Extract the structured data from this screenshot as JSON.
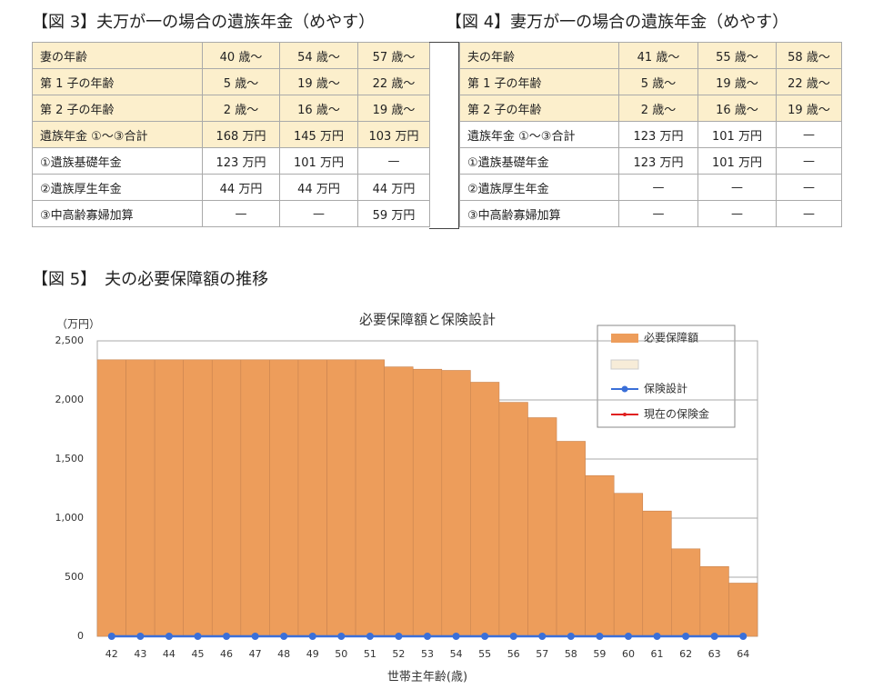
{
  "tables": [
    {
      "title": "【図 3】夫万が一の場合の遺族年金（めやす）",
      "highlight_rows": 4,
      "rows": [
        [
          "妻の年齢",
          "40 歳〜",
          "54 歳〜",
          "57 歳〜"
        ],
        [
          "第 1 子の年齢",
          "5 歳〜",
          "19 歳〜",
          "22 歳〜"
        ],
        [
          "第 2 子の年齢",
          "2 歳〜",
          "16 歳〜",
          "19 歳〜"
        ],
        [
          "遺族年金 ①〜③合計",
          "168 万円",
          "145 万円",
          "103 万円"
        ],
        [
          "①遺族基礎年金",
          "123 万円",
          "101 万円",
          "—"
        ],
        [
          "②遺族厚生年金",
          "44 万円",
          "44 万円",
          "44 万円"
        ],
        [
          "③中高齢寡婦加算",
          "—",
          "—",
          "59 万円"
        ]
      ]
    },
    {
      "title": "【図 4】妻万が一の場合の遺族年金（めやす）",
      "highlight_rows": 3,
      "rows": [
        [
          "夫の年齢",
          "41 歳〜",
          "55 歳〜",
          "58 歳〜"
        ],
        [
          "第 1 子の年齢",
          "5 歳〜",
          "19 歳〜",
          "22 歳〜"
        ],
        [
          "第 2 子の年齢",
          "2 歳〜",
          "16 歳〜",
          "19 歳〜"
        ],
        [
          "遺族年金 ①〜③合計",
          "123 万円",
          "101 万円",
          "—"
        ],
        [
          "①遺族基礎年金",
          "123 万円",
          "101 万円",
          "—"
        ],
        [
          "②遺族厚生年金",
          "—",
          "—",
          "—"
        ],
        [
          "③中高齢寡婦加算",
          "—",
          "—",
          "—"
        ]
      ]
    }
  ],
  "figure5": {
    "heading": "【図 5】　夫の必要保障額の推移"
  },
  "chart_data": {
    "type": "bar",
    "title": "必要保障額と保険設計",
    "y_unit": "（万円）",
    "x_label": "世帯主年齢(歳)",
    "categories": [
      42,
      43,
      44,
      45,
      46,
      47,
      48,
      49,
      50,
      51,
      52,
      53,
      54,
      55,
      56,
      57,
      58,
      59,
      60,
      61,
      62,
      63,
      64
    ],
    "series": [
      {
        "name": "必要保障額",
        "type": "bar",
        "color": "#ed9d5b",
        "values": [
          2340,
          2340,
          2340,
          2340,
          2340,
          2340,
          2340,
          2340,
          2340,
          2340,
          2280,
          2260,
          2250,
          2150,
          1980,
          1850,
          1650,
          1360,
          1210,
          1060,
          740,
          590,
          450
        ]
      },
      {
        "name": "保険設計",
        "type": "line",
        "color": "#3a6fd8",
        "values": [
          0,
          0,
          0,
          0,
          0,
          0,
          0,
          0,
          0,
          0,
          0,
          0,
          0,
          0,
          0,
          0,
          0,
          0,
          0,
          0,
          0,
          0,
          0
        ]
      },
      {
        "name": "現在の保険金",
        "type": "line",
        "color": "#e02020",
        "values": [
          0,
          0,
          0,
          0,
          0,
          0,
          0,
          0,
          0,
          0,
          0,
          0,
          0,
          0,
          0,
          0,
          0,
          0,
          0,
          0,
          0,
          0,
          0
        ]
      }
    ],
    "ylim": [
      0,
      2500
    ],
    "yticks": [
      0,
      500,
      {
        "value": 1000,
        "label": "1,000"
      },
      {
        "value": 1500,
        "label": "1,500"
      },
      {
        "value": 2000,
        "label": "2,000"
      },
      {
        "value": 2500,
        "label": "2,500"
      }
    ],
    "grid": true
  }
}
